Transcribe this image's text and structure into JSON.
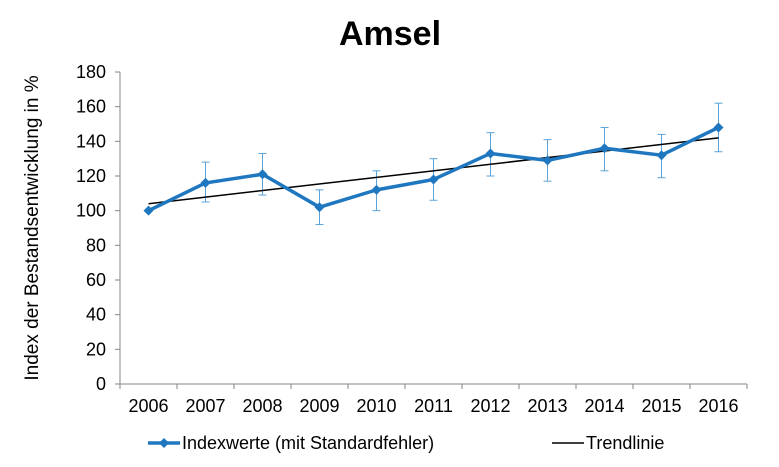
{
  "chart_data": {
    "type": "line",
    "title": "Amsel",
    "xlabel": "",
    "ylabel": "Index der Bestandsentwicklung in %",
    "ylim": [
      0,
      180
    ],
    "yticks": [
      0,
      20,
      40,
      60,
      80,
      100,
      120,
      140,
      160,
      180
    ],
    "categories": [
      "2006",
      "2007",
      "2008",
      "2009",
      "2010",
      "2011",
      "2012",
      "2013",
      "2014",
      "2015",
      "2016"
    ],
    "grid": false,
    "legend_position": "bottom",
    "series": [
      {
        "name": "Indexwerte (mit Standardfehler)",
        "type": "line-marker",
        "color": "#1f77c0",
        "values": [
          100,
          116,
          121,
          102,
          112,
          118,
          133,
          129,
          136,
          132,
          148
        ],
        "error_low": [
          100,
          105,
          109,
          92,
          100,
          106,
          120,
          117,
          123,
          119,
          134
        ],
        "error_high": [
          100,
          128,
          133,
          112,
          123,
          130,
          145,
          141,
          148,
          144,
          162
        ]
      },
      {
        "name": "Trendlinie",
        "type": "trend",
        "color": "#000000",
        "start": 104,
        "end": 142
      }
    ]
  }
}
